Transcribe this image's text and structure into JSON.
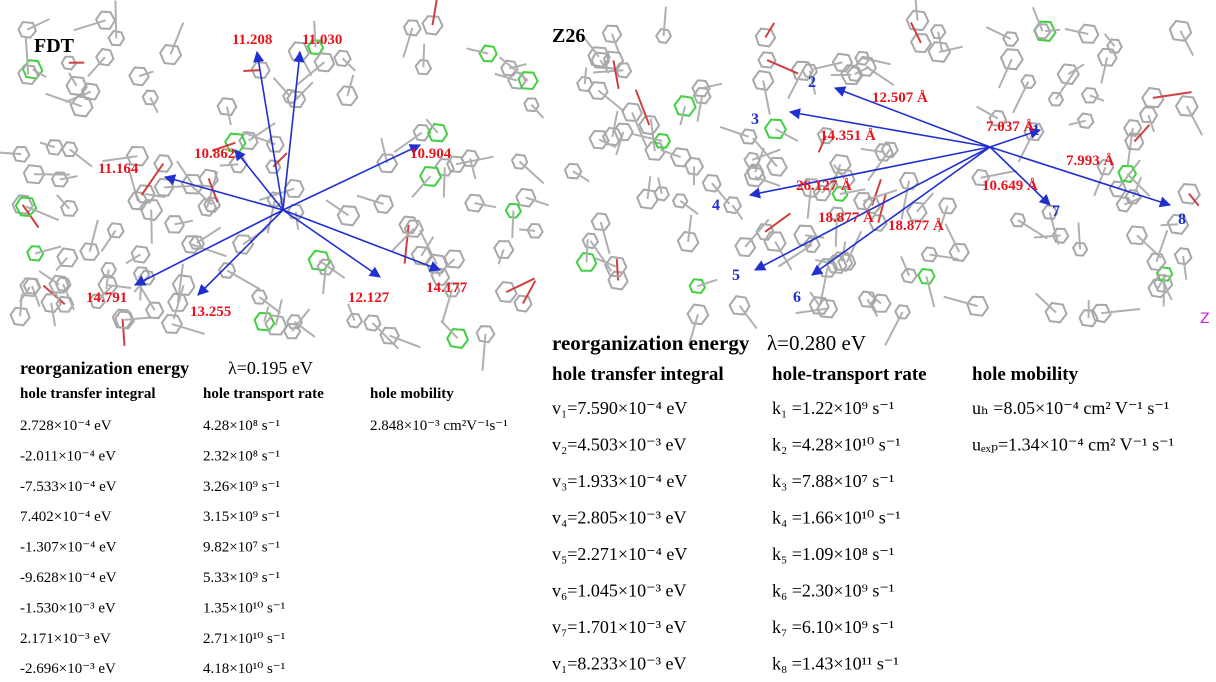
{
  "fdt": {
    "title": "FDT",
    "distances": [
      "11.208",
      "11.030",
      "11.164",
      "10.862",
      "10.904",
      "14.791",
      "13.255",
      "12.127",
      "14.177"
    ],
    "reorganization": {
      "label": "reorganization energy",
      "lambda": "λ=0.195 eV"
    },
    "headers": [
      "hole transfer integral",
      "hole transport rate",
      "hole mobility"
    ],
    "rows": [
      [
        "2.728×10⁻⁴ eV",
        "4.28×10⁸ s⁻¹"
      ],
      [
        "-2.011×10⁻⁴ eV",
        "2.32×10⁸ s⁻¹"
      ],
      [
        "-7.533×10⁻⁴ eV",
        "3.26×10⁹ s⁻¹"
      ],
      [
        "7.402×10⁻⁴ eV",
        "3.15×10⁹ s⁻¹"
      ],
      [
        "-1.307×10⁻⁴ eV",
        "9.82×10⁷ s⁻¹"
      ],
      [
        "-9.628×10⁻⁴ eV",
        "5.33×10⁹ s⁻¹"
      ],
      [
        "-1.530×10⁻³ eV",
        "1.35×10¹⁰ s⁻¹"
      ],
      [
        "2.171×10⁻³ eV",
        "2.71×10¹⁰ s⁻¹"
      ],
      [
        "-2.696×10⁻³ eV",
        "4.18×10¹⁰ s⁻¹"
      ]
    ],
    "mobility": [
      "2.848×10⁻³ cm²V⁻¹s⁻¹"
    ]
  },
  "z26": {
    "title": "Z26",
    "neighbors": [
      "1",
      "2",
      "3",
      "4",
      "5",
      "6",
      "7",
      "8"
    ],
    "distances": [
      "7.037 Å",
      "12.507 Å",
      "14.351 Å",
      "26.127 Å",
      "18.877 Å",
      "18.877 Å",
      "10.649 Å",
      "7.993 Å"
    ],
    "axis_label": "Z",
    "reorganization": {
      "label": "reorganization energy",
      "lambda": "λ=0.280 eV"
    },
    "headers": [
      "hole transfer integral",
      "hole-transport rate",
      "hole mobility"
    ],
    "rows": [
      [
        "v₁=7.590×10⁻⁴ eV",
        "k₁ =1.22×10⁹ s⁻¹"
      ],
      [
        "v₂=4.503×10⁻³ eV",
        "k₂ =4.28×10¹⁰ s⁻¹"
      ],
      [
        "v₃=1.933×10⁻⁴ eV",
        "k₃ =7.88×10⁷ s⁻¹"
      ],
      [
        "v₄=2.805×10⁻³ eV",
        "k₄ =1.66×10¹⁰ s⁻¹"
      ],
      [
        "v₅=2.271×10⁻⁴ eV",
        "k₅ =1.09×10⁸ s⁻¹"
      ],
      [
        "v₆=1.045×10⁻³ eV",
        "k₆ =2.30×10⁹ s⁻¹"
      ],
      [
        "v₇=1.701×10⁻³ eV",
        "k₇ =6.10×10⁹ s⁻¹"
      ],
      [
        "v₁=8.233×10⁻³ eV",
        "k₈ =1.43×10¹¹ s⁻¹"
      ]
    ],
    "mobility": [
      "uₕ =8.05×10⁻⁴   cm² V⁻¹ s⁻¹",
      "uₑₓₚ=1.34×10⁻⁴ cm² V⁻¹ s⁻¹"
    ]
  }
}
